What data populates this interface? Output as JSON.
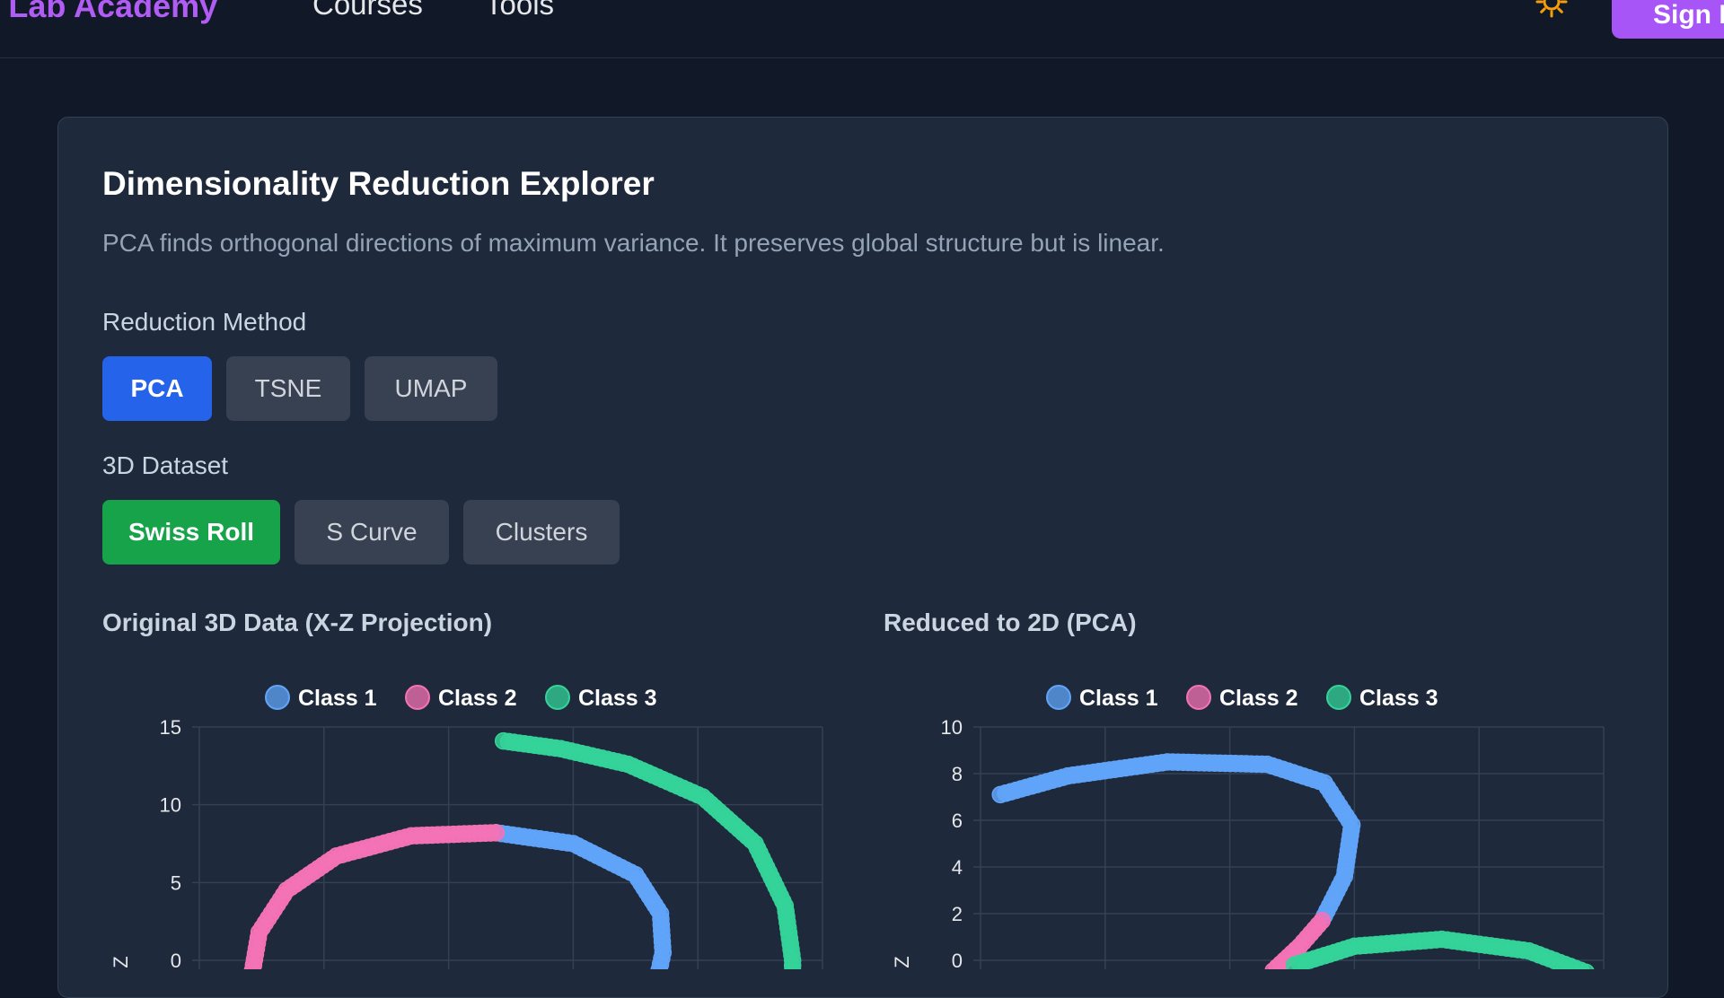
{
  "nav": {
    "logo": "P Lab Academy",
    "links": [
      "Courses",
      "Tools"
    ],
    "sign_in": "Sign In"
  },
  "page": {
    "title": "Dimensionality Reduction Explorer",
    "description": "PCA finds orthogonal directions of maximum variance. It preserves global structure but is linear."
  },
  "controls": {
    "method_label": "Reduction Method",
    "methods": [
      "PCA",
      "TSNE",
      "UMAP"
    ],
    "selected_method": "PCA",
    "dataset_label": "3D Dataset",
    "datasets": [
      "Swiss Roll",
      "S Curve",
      "Clusters"
    ],
    "selected_dataset": "Swiss Roll"
  },
  "colors": {
    "accent_purple": "#a855f7",
    "method_active": "#2563eb",
    "dataset_active": "#16a34a",
    "class1": "#60a5fa",
    "class2": "#f472b6",
    "class3": "#34d399"
  },
  "chart_data": [
    {
      "type": "scatter",
      "title": "Original 3D Data (X-Z Projection)",
      "legend": [
        "Class 1",
        "Class 2",
        "Class 3"
      ],
      "legend_position": "top-center",
      "ylabel": "Z",
      "yticks": [
        "15",
        "10",
        "5",
        "0"
      ],
      "ylim": [
        0,
        15
      ],
      "xlim": [
        -12,
        13
      ],
      "grid": true,
      "series": [
        {
          "name": "Class 1",
          "color": "#60a5fa",
          "points": [
            [
              -0.1,
              8.2
            ],
            [
              3,
              7.5
            ],
            [
              5.5,
              5.5
            ],
            [
              6.5,
              3
            ],
            [
              6.6,
              0.5
            ],
            [
              6.4,
              -1
            ]
          ]
        },
        {
          "name": "Class 2",
          "color": "#f472b6",
          "points": [
            [
              -0.1,
              8.2
            ],
            [
              -3.5,
              8
            ],
            [
              -6.5,
              6.7
            ],
            [
              -8.5,
              4.5
            ],
            [
              -9.6,
              1.8
            ],
            [
              -9.9,
              -1
            ]
          ]
        },
        {
          "name": "Class 3",
          "color": "#34d399",
          "points": [
            [
              0.2,
              14.1
            ],
            [
              2.5,
              13.6
            ],
            [
              5.2,
              12.6
            ],
            [
              8.2,
              10.5
            ],
            [
              10.3,
              7.5
            ],
            [
              11.5,
              3.5
            ],
            [
              11.8,
              0
            ],
            [
              11.8,
              -1
            ]
          ]
        }
      ]
    },
    {
      "type": "scatter",
      "title": "Reduced to 2D (PCA)",
      "legend": [
        "Class 1",
        "Class 2",
        "Class 3"
      ],
      "legend_position": "top-center",
      "ylabel": "Z",
      "yticks": [
        "10",
        "8",
        "6",
        "4",
        "2",
        "0"
      ],
      "ylim": [
        0,
        10
      ],
      "xlim": [
        -12,
        13
      ],
      "grid": true,
      "series": [
        {
          "name": "Class 1",
          "color": "#60a5fa",
          "points": [
            [
              -11.2,
              7.1
            ],
            [
              -8.5,
              7.9
            ],
            [
              -4.5,
              8.5
            ],
            [
              -0.5,
              8.4
            ],
            [
              1.8,
              7.6
            ],
            [
              2.9,
              5.8
            ],
            [
              2.6,
              3.6
            ],
            [
              1.7,
              1.7
            ]
          ]
        },
        {
          "name": "Class 2",
          "color": "#f472b6",
          "points": [
            [
              1.7,
              1.7
            ],
            [
              0.8,
              0.6
            ],
            [
              -0.1,
              -0.3
            ],
            [
              -0.4,
              -0.6
            ]
          ]
        },
        {
          "name": "Class 3",
          "color": "#34d399",
          "points": [
            [
              0.6,
              -0.2
            ],
            [
              3,
              0.6
            ],
            [
              6.5,
              0.9
            ],
            [
              10,
              0.4
            ],
            [
              12.5,
              -0.6
            ]
          ]
        }
      ]
    }
  ]
}
